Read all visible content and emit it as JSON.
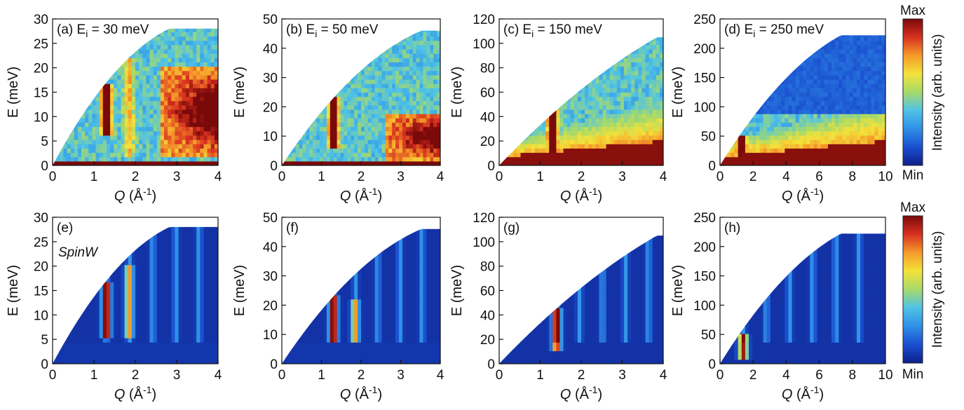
{
  "colorbar": {
    "max_label": "Max",
    "min_label": "Min",
    "label": "Intensity (arb. units)",
    "colors": [
      "#0d1f8a",
      "#1a4fd0",
      "#2f8fe6",
      "#4fc3e6",
      "#a6d96a",
      "#f4e23a",
      "#f59a2a",
      "#d7301f",
      "#7a0a0a"
    ]
  },
  "chart_data": [
    {
      "id": "a",
      "type": "heatmap",
      "panel_label": "(a) E",
      "label_sub": "i",
      "label_rest": " = 30 meV",
      "xlabel_q": "Q",
      "xlabel_unit": " (Å",
      "xlabel_exp": "-1",
      "xlabel_close": ")",
      "ylabel": "E (meV)",
      "xlim": [
        0,
        4
      ],
      "ylim": [
        0,
        30
      ],
      "xticks": [
        "0",
        "1",
        "2",
        "3",
        "4"
      ],
      "yticks": [
        "0",
        "5",
        "10",
        "15",
        "20",
        "25",
        "30"
      ],
      "Ei_meV": 30,
      "Emax_shown": 28,
      "kind": "data",
      "features": [
        {
          "q": 1.3,
          "e": [
            6,
            17
          ],
          "level": "max"
        },
        {
          "q": 1.85,
          "e": [
            2,
            22
          ],
          "level": "mid"
        },
        {
          "q": [
            2.6,
            4.0
          ],
          "e": [
            2,
            20
          ],
          "level": "max"
        }
      ]
    },
    {
      "id": "b",
      "type": "heatmap",
      "panel_label": "(b) E",
      "label_sub": "i",
      "label_rest": " = 50 meV",
      "xlabel_q": "Q",
      "xlabel_unit": " (Å",
      "xlabel_exp": "-1",
      "xlabel_close": ")",
      "ylabel": "E (meV)",
      "xlim": [
        0,
        4
      ],
      "ylim": [
        0,
        50
      ],
      "xticks": [
        "0",
        "1",
        "2",
        "3",
        "4"
      ],
      "yticks": [
        "0",
        "10",
        "20",
        "30",
        "40",
        "50"
      ],
      "Ei_meV": 50,
      "Emax_shown": 46,
      "kind": "data",
      "features": [
        {
          "q": 1.3,
          "e": [
            6,
            24
          ],
          "level": "max"
        },
        {
          "q": [
            2.6,
            4.0
          ],
          "e": [
            2,
            18
          ],
          "level": "max"
        }
      ]
    },
    {
      "id": "c",
      "type": "heatmap",
      "panel_label": "(c) E",
      "label_sub": "i",
      "label_rest": " = 150 meV",
      "xlabel_q": "Q",
      "xlabel_unit": " (Å",
      "xlabel_exp": "-1",
      "xlabel_close": ")",
      "ylabel": "E (meV)",
      "xlim": [
        0,
        4
      ],
      "ylim": [
        0,
        120
      ],
      "xticks": [
        "0",
        "1",
        "2",
        "3",
        "4"
      ],
      "yticks": [
        "0",
        "20",
        "40",
        "60",
        "80",
        "100",
        "120"
      ],
      "Ei_meV": 150,
      "Emax_shown": 105,
      "kind": "data",
      "features": [
        {
          "q": 1.3,
          "e": [
            0,
            45
          ],
          "level": "max"
        }
      ]
    },
    {
      "id": "d",
      "type": "heatmap",
      "panel_label": "(d) E",
      "label_sub": "i",
      "label_rest": " = 250 meV",
      "xlabel_q": "Q",
      "xlabel_unit": " (Å",
      "xlabel_exp": "-1",
      "xlabel_close": ")",
      "ylabel": "E (meV)",
      "xlim": [
        0,
        10
      ],
      "ylim": [
        0,
        250
      ],
      "xticks": [
        "0",
        "2",
        "4",
        "6",
        "8",
        "10"
      ],
      "yticks": [
        "0",
        "50",
        "100",
        "150",
        "200",
        "250"
      ],
      "Ei_meV": 250,
      "Emax_shown": 222,
      "kind": "data",
      "features": [
        {
          "q": 1.3,
          "e": [
            10,
            50
          ],
          "level": "max"
        }
      ]
    },
    {
      "id": "e",
      "type": "heatmap",
      "panel_label": "(e)",
      "extra_label": "SpinW",
      "xlabel_q": "Q",
      "xlabel_unit": " (Å",
      "xlabel_exp": "-1",
      "xlabel_close": ")",
      "ylabel": "E (meV)",
      "xlim": [
        0,
        4
      ],
      "ylim": [
        0,
        30
      ],
      "xticks": [
        "0",
        "1",
        "2",
        "3",
        "4"
      ],
      "yticks": [
        "0",
        "5",
        "10",
        "15",
        "20",
        "25",
        "30"
      ],
      "Ei_meV": 30,
      "Emax_shown": 28,
      "kind": "sim",
      "features": [
        {
          "q": 1.3,
          "e": [
            5,
            17
          ],
          "level": "max"
        },
        {
          "q": 1.85,
          "e": [
            5,
            20
          ],
          "level": "high"
        }
      ]
    },
    {
      "id": "f",
      "type": "heatmap",
      "panel_label": "(f)",
      "xlabel_q": "Q",
      "xlabel_unit": " (Å",
      "xlabel_exp": "-1",
      "xlabel_close": ")",
      "ylabel": "E (meV)",
      "xlim": [
        0,
        4
      ],
      "ylim": [
        0,
        50
      ],
      "xticks": [
        "0",
        "1",
        "2",
        "3",
        "4"
      ],
      "yticks": [
        "0",
        "10",
        "20",
        "30",
        "40",
        "50"
      ],
      "Ei_meV": 50,
      "Emax_shown": 46,
      "kind": "sim",
      "features": [
        {
          "q": 1.3,
          "e": [
            5,
            24
          ],
          "level": "max"
        },
        {
          "q": 1.85,
          "e": [
            5,
            22
          ],
          "level": "high"
        }
      ]
    },
    {
      "id": "g",
      "type": "heatmap",
      "panel_label": "(g)",
      "xlabel_q": "Q",
      "xlabel_unit": " (Å",
      "xlabel_exp": "-1",
      "xlabel_close": ")",
      "ylabel": "E (meV)",
      "xlim": [
        0,
        4
      ],
      "ylim": [
        0,
        120
      ],
      "xticks": [
        "0",
        "1",
        "2",
        "3",
        "4"
      ],
      "yticks": [
        "0",
        "20",
        "40",
        "60",
        "80",
        "100",
        "120"
      ],
      "Ei_meV": 150,
      "Emax_shown": 105,
      "kind": "sim",
      "features": [
        {
          "q": 1.4,
          "e": [
            10,
            45
          ],
          "level": "max"
        }
      ]
    },
    {
      "id": "h",
      "type": "heatmap",
      "panel_label": "(h)",
      "xlabel_q": "Q",
      "xlabel_unit": " (Å",
      "xlabel_exp": "-1",
      "xlabel_close": ")",
      "ylabel": "E (meV)",
      "xlim": [
        0,
        10
      ],
      "ylim": [
        0,
        250
      ],
      "xticks": [
        "0",
        "2",
        "4",
        "6",
        "8",
        "10"
      ],
      "yticks": [
        "0",
        "50",
        "100",
        "150",
        "200",
        "250"
      ],
      "Ei_meV": 250,
      "Emax_shown": 222,
      "kind": "sim",
      "features": [
        {
          "q": 1.4,
          "e": [
            5,
            50
          ],
          "level": "max"
        }
      ]
    }
  ]
}
